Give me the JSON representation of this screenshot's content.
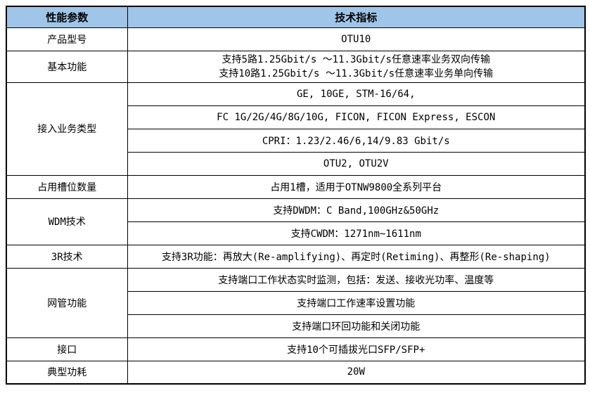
{
  "colors": {
    "header_bg": "#9FC5E8",
    "border": "#000000",
    "text": "#000000"
  },
  "table": {
    "header": {
      "col1": "性能参数",
      "col2": "技术指标"
    },
    "rows": [
      {
        "param": "产品型号",
        "values": [
          "OTU10"
        ]
      },
      {
        "param": "基本功能",
        "values": [
          "支持5路1.25Gbit/s ～11.3Gbit/s任意速率业务双向传输\n支持10路1.25Gbit/s ～11.3Gbit/s任意速率业务单向传输"
        ]
      },
      {
        "param": "接入业务类型",
        "values": [
          "GE, 10GE, STM-16/64,",
          "FC 1G/2G/4G/8G/10G, FICON, FICON Express, ESCON",
          "CPRI：1.23/2.46/6,14/9.83 Gbit/s",
          "OTU2, OTU2V"
        ]
      },
      {
        "param": "占用槽位数量",
        "values": [
          "占用1槽，适用于OTNW9800全系列平台"
        ]
      },
      {
        "param": "WDM技术",
        "values": [
          "支持DWDM：C Band,100GHz&50GHz",
          "支持CWDM：1271nm~1611nm"
        ]
      },
      {
        "param": "3R技术",
        "values": [
          "支持3R功能：再放大(Re-amplifying)、再定时(Retiming)、再整形(Re-shaping)"
        ]
      },
      {
        "param": "网管功能",
        "values": [
          "支持端口工作状态实时监测，包括：发送、接收光功率、温度等",
          "支持端口工作速率设置功能",
          "支持端口环回功能和关闭功能"
        ]
      },
      {
        "param": "接口",
        "values": [
          "支持10个可插拔光口SFP/SFP+"
        ]
      },
      {
        "param": "典型功耗",
        "values": [
          "20W"
        ]
      }
    ]
  }
}
